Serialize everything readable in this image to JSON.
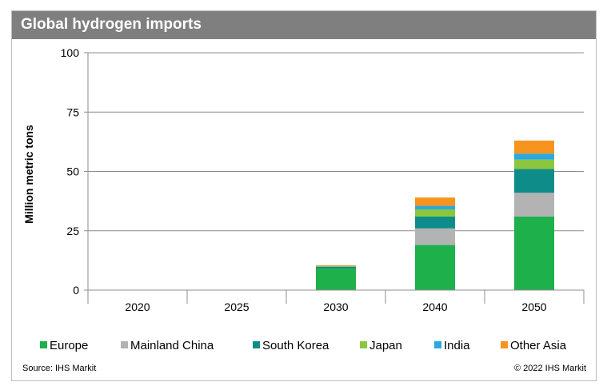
{
  "header": {
    "title": "Global hydrogen imports"
  },
  "footer": {
    "source": "Source: IHS Markit",
    "copyright": "© 2022 IHS Markit"
  },
  "colors": {
    "Europe": "#1db04b",
    "Mainland China": "#b3b3b3",
    "South Korea": "#0e8c8a",
    "Japan": "#8cc63f",
    "India": "#29a9df",
    "Other Asia": "#f7941d",
    "title_bar": "#7f7f7f"
  },
  "chart_data": {
    "type": "bar",
    "stacked": true,
    "title": "Global hydrogen imports",
    "xlabel": "",
    "ylabel": "Million metric tons",
    "ylim": [
      0,
      100
    ],
    "yticks": [
      0,
      25,
      50,
      75,
      100
    ],
    "grid": true,
    "legend_position": "bottom",
    "categories": [
      "2020",
      "2025",
      "2030",
      "2040",
      "2050"
    ],
    "series": [
      {
        "name": "Europe",
        "values": [
          0,
          0,
          9,
          19,
          31
        ]
      },
      {
        "name": "Mainland China",
        "values": [
          0,
          0,
          0,
          7,
          10
        ]
      },
      {
        "name": "South Korea",
        "values": [
          0,
          0,
          0.8,
          5,
          10
        ]
      },
      {
        "name": "Japan",
        "values": [
          0,
          0,
          0.3,
          3,
          4
        ]
      },
      {
        "name": "India",
        "values": [
          0,
          0,
          0.1,
          1.5,
          2.5
        ]
      },
      {
        "name": "Other Asia",
        "values": [
          0,
          0,
          0.3,
          3.5,
          5.5
        ]
      }
    ]
  }
}
